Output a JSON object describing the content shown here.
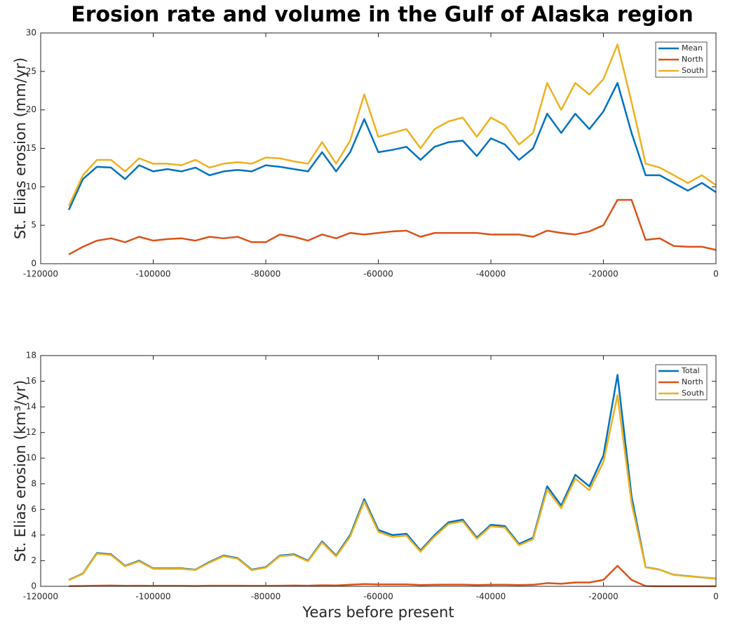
{
  "chart_data": [
    {
      "type": "line",
      "title": "Erosion rate and volume in the Gulf of Alaska region",
      "ylabel": "St. Elias erosion (mm/yr)",
      "x": [
        -115000,
        -112500,
        -110000,
        -107500,
        -105000,
        -102500,
        -100000,
        -97500,
        -95000,
        -92500,
        -90000,
        -87500,
        -85000,
        -82500,
        -80000,
        -77500,
        -75000,
        -72500,
        -70000,
        -67500,
        -65000,
        -62500,
        -60000,
        -57500,
        -55000,
        -52500,
        -50000,
        -47500,
        -45000,
        -42500,
        -40000,
        -37500,
        -35000,
        -32500,
        -30000,
        -27500,
        -25000,
        -22500,
        -20000,
        -17500,
        -15000,
        -12500,
        -10000,
        -7500,
        -5000,
        -2500,
        0
      ],
      "series": [
        {
          "name": "Mean",
          "color": "#0072BD",
          "values": [
            7,
            11,
            12.6,
            12.5,
            11,
            12.8,
            12,
            12.3,
            12,
            12.5,
            11.5,
            12,
            12.2,
            12,
            12.8,
            12.6,
            12.3,
            12,
            14.5,
            12,
            14.5,
            18.8,
            14.5,
            14.8,
            15.2,
            13.5,
            15.2,
            15.8,
            16,
            14,
            16.3,
            15.5,
            13.5,
            15,
            19.5,
            17,
            19.5,
            17.5,
            19.8,
            23.5,
            17,
            11.5,
            11.5,
            10.5,
            9.5,
            10.5,
            9.3
          ]
        },
        {
          "name": "North",
          "color": "#D95319",
          "values": [
            1.2,
            2.2,
            3,
            3.3,
            2.8,
            3.5,
            3,
            3.2,
            3.3,
            3,
            3.5,
            3.3,
            3.5,
            2.8,
            2.8,
            3.8,
            3.5,
            3,
            3.8,
            3.3,
            4,
            3.8,
            4,
            4.2,
            4.3,
            3.5,
            4,
            4,
            4,
            4,
            3.8,
            3.8,
            3.8,
            3.5,
            4.3,
            4,
            3.8,
            4.2,
            5,
            8.3,
            8.3,
            3.1,
            3.3,
            2.3,
            2.2,
            2.2,
            1.8
          ]
        },
        {
          "name": "South",
          "color": "#EDB120",
          "values": [
            7.5,
            11.5,
            13.5,
            13.5,
            12,
            13.7,
            13,
            13,
            12.8,
            13.5,
            12.5,
            13,
            13.2,
            13,
            13.8,
            13.7,
            13.3,
            13,
            15.8,
            13,
            16,
            22,
            16.5,
            17,
            17.5,
            15,
            17.5,
            18.5,
            19,
            16.5,
            19,
            18,
            15.5,
            17,
            23.5,
            20,
            23.5,
            22,
            24,
            28.5,
            21,
            13,
            12.5,
            11.5,
            10.5,
            11.5,
            10.2
          ]
        }
      ],
      "xlim": [
        -120000,
        0
      ],
      "xticks": [
        -120000,
        -100000,
        -80000,
        -60000,
        -40000,
        -20000,
        0
      ],
      "ylim": [
        0,
        30
      ],
      "yticks": [
        0,
        5,
        10,
        15,
        20,
        25,
        30
      ],
      "legend": "upper right"
    },
    {
      "type": "line",
      "ylabel": "St. Elias erosion (km³/yr)",
      "xlabel": "Years before present",
      "x": [
        -115000,
        -112500,
        -110000,
        -107500,
        -105000,
        -102500,
        -100000,
        -97500,
        -95000,
        -92500,
        -90000,
        -87500,
        -85000,
        -82500,
        -80000,
        -77500,
        -75000,
        -72500,
        -70000,
        -67500,
        -65000,
        -62500,
        -60000,
        -57500,
        -55000,
        -52500,
        -50000,
        -47500,
        -45000,
        -42500,
        -40000,
        -37500,
        -35000,
        -32500,
        -30000,
        -27500,
        -25000,
        -22500,
        -20000,
        -17500,
        -15000,
        -12500,
        -10000,
        -7500,
        -5000,
        -2500,
        0
      ],
      "series": [
        {
          "name": "Total",
          "color": "#0072BD",
          "values": [
            0.5,
            1.0,
            2.6,
            2.5,
            1.6,
            2.0,
            1.4,
            1.4,
            1.4,
            1.3,
            1.9,
            2.4,
            2.2,
            1.3,
            1.5,
            2.4,
            2.5,
            2.0,
            3.5,
            2.4,
            4.0,
            6.8,
            4.4,
            4.0,
            4.1,
            2.8,
            4.0,
            5.0,
            5.2,
            3.8,
            4.8,
            4.7,
            3.3,
            3.8,
            7.8,
            6.3,
            8.7,
            7.8,
            10.2,
            16.5,
            7.0,
            1.5,
            1.3,
            0.9,
            0.8,
            0.7,
            0.6
          ]
        },
        {
          "name": "North",
          "color": "#D95319",
          "values": [
            0.02,
            0.03,
            0.05,
            0.06,
            0.04,
            0.05,
            0.04,
            0.04,
            0.04,
            0.03,
            0.05,
            0.05,
            0.05,
            0.04,
            0.04,
            0.05,
            0.06,
            0.05,
            0.08,
            0.07,
            0.12,
            0.18,
            0.15,
            0.15,
            0.15,
            0.1,
            0.12,
            0.13,
            0.13,
            0.1,
            0.12,
            0.12,
            0.1,
            0.12,
            0.25,
            0.2,
            0.3,
            0.3,
            0.5,
            1.6,
            0.5,
            0.02,
            0.01,
            0.01,
            0.01,
            0.01,
            0.01
          ]
        },
        {
          "name": "South",
          "color": "#EDB120",
          "values": [
            0.48,
            0.97,
            2.55,
            2.44,
            1.56,
            1.95,
            1.36,
            1.36,
            1.36,
            1.27,
            1.85,
            2.35,
            2.15,
            1.26,
            1.46,
            2.35,
            2.44,
            1.95,
            3.42,
            2.33,
            3.88,
            6.62,
            4.25,
            3.85,
            3.95,
            2.7,
            3.88,
            4.87,
            5.07,
            3.7,
            4.68,
            4.58,
            3.2,
            3.68,
            7.55,
            6.1,
            8.4,
            7.5,
            9.7,
            14.9,
            6.5,
            1.48,
            1.29,
            0.89,
            0.79,
            0.69,
            0.59
          ]
        }
      ],
      "xlim": [
        -120000,
        0
      ],
      "xticks": [
        -120000,
        -100000,
        -80000,
        -60000,
        -40000,
        -20000,
        0
      ],
      "ylim": [
        0,
        18
      ],
      "yticks": [
        0,
        2,
        4,
        6,
        8,
        10,
        12,
        14,
        16,
        18
      ],
      "legend": "upper right"
    }
  ]
}
